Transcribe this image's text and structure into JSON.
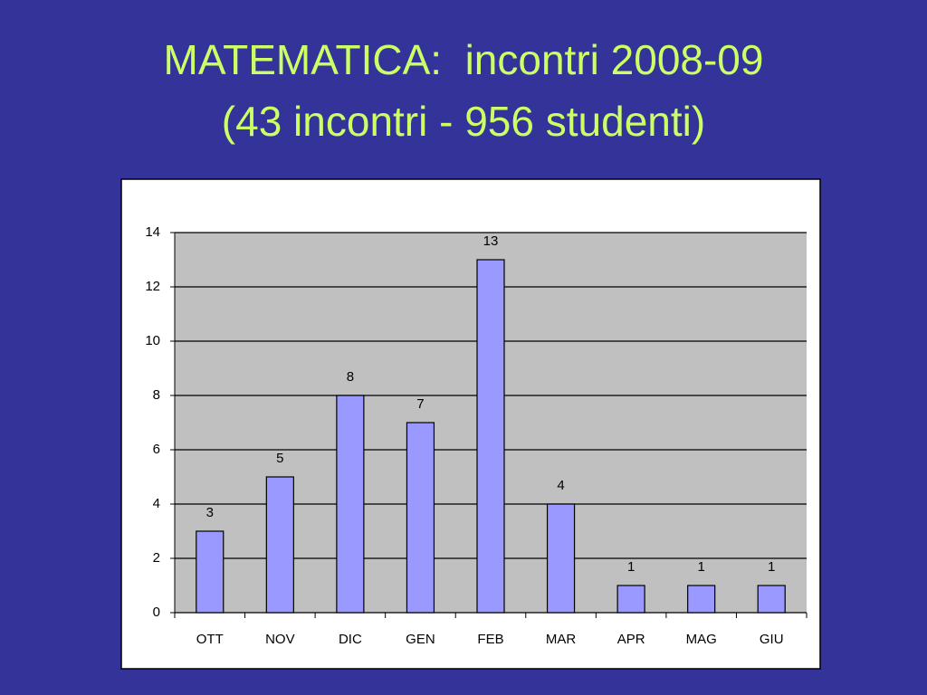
{
  "chart_data": {
    "type": "bar",
    "title": "MATEMATICA:  incontri 2008-09",
    "subtitle": "(43 incontri - 956 studenti)",
    "categories": [
      "OTT",
      "NOV",
      "DIC",
      "GEN",
      "FEB",
      "MAR",
      "APR",
      "MAG",
      "GIU"
    ],
    "values": [
      3,
      5,
      8,
      7,
      13,
      4,
      1,
      1,
      1
    ],
    "color": "#9999ff",
    "ylim": [
      0,
      14
    ],
    "yticks": [
      0,
      2,
      4,
      6,
      8,
      10,
      12,
      14
    ],
    "grid": true
  }
}
